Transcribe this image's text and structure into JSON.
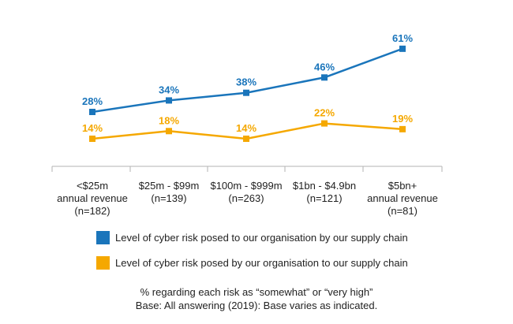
{
  "chart_data": {
    "type": "line",
    "categories": [
      [
        "<$25m",
        "annual revenue",
        "(n=182)"
      ],
      [
        "$25m - $99m",
        "(n=139)"
      ],
      [
        "$100m - $999m",
        "(n=263)"
      ],
      [
        "$1bn - $4.9bn",
        "(n=121)"
      ],
      [
        "$5bn+",
        "annual revenue",
        "(n=81)"
      ]
    ],
    "series": [
      {
        "name": "Level of cyber risk posed to our organisation by our supply chain",
        "values": [
          28,
          34,
          38,
          46,
          61
        ],
        "labels": [
          "28%",
          "34%",
          "38%",
          "46%",
          "61%"
        ],
        "color": "#1a75bb"
      },
      {
        "name": "Level of cyber risk posed by our organisation to our supply chain",
        "values": [
          14,
          18,
          14,
          22,
          19
        ],
        "labels": [
          "14%",
          "18%",
          "14%",
          "22%",
          "19%"
        ],
        "color": "#f5a800"
      }
    ],
    "ylim": [
      0,
      70
    ],
    "grid": false,
    "legend_position": "bottom"
  },
  "notes": {
    "line1": "% regarding each risk as “somewhat” or “very high”",
    "line2": "Base: All answering (2019): Base varies as indicated."
  }
}
